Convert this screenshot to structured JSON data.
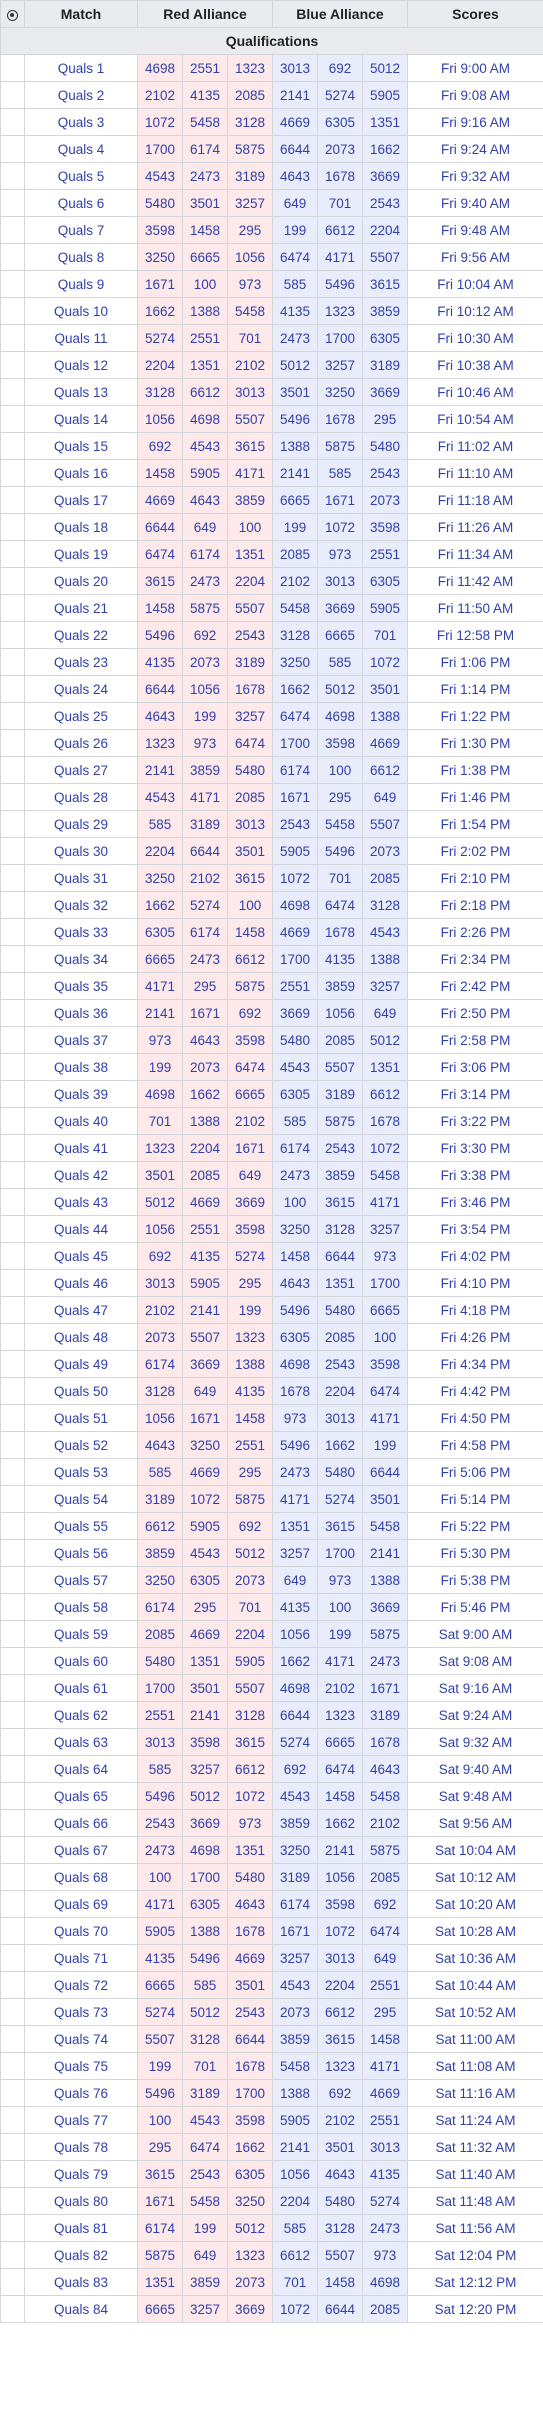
{
  "header": {
    "match": "Match",
    "red": "Red Alliance",
    "blue": "Blue Alliance",
    "scores": "Scores"
  },
  "section_label": "Qualifications",
  "matches": [
    [
      "Quals 1",
      "4698",
      "2551",
      "1323",
      "3013",
      "692",
      "5012",
      "Fri 9:00 AM"
    ],
    [
      "Quals 2",
      "2102",
      "4135",
      "2085",
      "2141",
      "5274",
      "5905",
      "Fri 9:08 AM"
    ],
    [
      "Quals 3",
      "1072",
      "5458",
      "3128",
      "4669",
      "6305",
      "1351",
      "Fri 9:16 AM"
    ],
    [
      "Quals 4",
      "1700",
      "6174",
      "5875",
      "6644",
      "2073",
      "1662",
      "Fri 9:24 AM"
    ],
    [
      "Quals 5",
      "4543",
      "2473",
      "3189",
      "4643",
      "1678",
      "3669",
      "Fri 9:32 AM"
    ],
    [
      "Quals 6",
      "5480",
      "3501",
      "3257",
      "649",
      "701",
      "2543",
      "Fri 9:40 AM"
    ],
    [
      "Quals 7",
      "3598",
      "1458",
      "295",
      "199",
      "6612",
      "2204",
      "Fri 9:48 AM"
    ],
    [
      "Quals 8",
      "3250",
      "6665",
      "1056",
      "6474",
      "4171",
      "5507",
      "Fri 9:56 AM"
    ],
    [
      "Quals 9",
      "1671",
      "100",
      "973",
      "585",
      "5496",
      "3615",
      "Fri 10:04 AM"
    ],
    [
      "Quals 10",
      "1662",
      "1388",
      "5458",
      "4135",
      "1323",
      "3859",
      "Fri 10:12 AM"
    ],
    [
      "Quals 11",
      "5274",
      "2551",
      "701",
      "2473",
      "1700",
      "6305",
      "Fri 10:30 AM"
    ],
    [
      "Quals 12",
      "2204",
      "1351",
      "2102",
      "5012",
      "3257",
      "3189",
      "Fri 10:38 AM"
    ],
    [
      "Quals 13",
      "3128",
      "6612",
      "3013",
      "3501",
      "3250",
      "3669",
      "Fri 10:46 AM"
    ],
    [
      "Quals 14",
      "1056",
      "4698",
      "5507",
      "5496",
      "1678",
      "295",
      "Fri 10:54 AM"
    ],
    [
      "Quals 15",
      "692",
      "4543",
      "3615",
      "1388",
      "5875",
      "5480",
      "Fri 11:02 AM"
    ],
    [
      "Quals 16",
      "1458",
      "5905",
      "4171",
      "2141",
      "585",
      "2543",
      "Fri 11:10 AM"
    ],
    [
      "Quals 17",
      "4669",
      "4643",
      "3859",
      "6665",
      "1671",
      "2073",
      "Fri 11:18 AM"
    ],
    [
      "Quals 18",
      "6644",
      "649",
      "100",
      "199",
      "1072",
      "3598",
      "Fri 11:26 AM"
    ],
    [
      "Quals 19",
      "6474",
      "6174",
      "1351",
      "2085",
      "973",
      "2551",
      "Fri 11:34 AM"
    ],
    [
      "Quals 20",
      "3615",
      "2473",
      "2204",
      "2102",
      "3013",
      "6305",
      "Fri 11:42 AM"
    ],
    [
      "Quals 21",
      "1458",
      "5875",
      "5507",
      "5458",
      "3669",
      "5905",
      "Fri 11:50 AM"
    ],
    [
      "Quals 22",
      "5496",
      "692",
      "2543",
      "3128",
      "6665",
      "701",
      "Fri 12:58 PM"
    ],
    [
      "Quals 23",
      "4135",
      "2073",
      "3189",
      "3250",
      "585",
      "1072",
      "Fri 1:06 PM"
    ],
    [
      "Quals 24",
      "6644",
      "1056",
      "1678",
      "1662",
      "5012",
      "3501",
      "Fri 1:14 PM"
    ],
    [
      "Quals 25",
      "4643",
      "199",
      "3257",
      "6474",
      "4698",
      "1388",
      "Fri 1:22 PM"
    ],
    [
      "Quals 26",
      "1323",
      "973",
      "6474",
      "1700",
      "3598",
      "4669",
      "Fri 1:30 PM"
    ],
    [
      "Quals 27",
      "2141",
      "3859",
      "5480",
      "6174",
      "100",
      "6612",
      "Fri 1:38 PM"
    ],
    [
      "Quals 28",
      "4543",
      "4171",
      "2085",
      "1671",
      "295",
      "649",
      "Fri 1:46 PM"
    ],
    [
      "Quals 29",
      "585",
      "3189",
      "3013",
      "2543",
      "5458",
      "5507",
      "Fri 1:54 PM"
    ],
    [
      "Quals 30",
      "2204",
      "6644",
      "3501",
      "5905",
      "5496",
      "2073",
      "Fri 2:02 PM"
    ],
    [
      "Quals 31",
      "3250",
      "2102",
      "3615",
      "1072",
      "701",
      "2085",
      "Fri 2:10 PM"
    ],
    [
      "Quals 32",
      "1662",
      "5274",
      "100",
      "4698",
      "6474",
      "3128",
      "Fri 2:18 PM"
    ],
    [
      "Quals 33",
      "6305",
      "6174",
      "1458",
      "4669",
      "1678",
      "4543",
      "Fri 2:26 PM"
    ],
    [
      "Quals 34",
      "6665",
      "2473",
      "6612",
      "1700",
      "4135",
      "1388",
      "Fri 2:34 PM"
    ],
    [
      "Quals 35",
      "4171",
      "295",
      "5875",
      "2551",
      "3859",
      "3257",
      "Fri 2:42 PM"
    ],
    [
      "Quals 36",
      "2141",
      "1671",
      "692",
      "3669",
      "1056",
      "649",
      "Fri 2:50 PM"
    ],
    [
      "Quals 37",
      "973",
      "4643",
      "3598",
      "5480",
      "2085",
      "5012",
      "Fri 2:58 PM"
    ],
    [
      "Quals 38",
      "199",
      "2073",
      "6474",
      "4543",
      "5507",
      "1351",
      "Fri 3:06 PM"
    ],
    [
      "Quals 39",
      "4698",
      "1662",
      "6665",
      "6305",
      "3189",
      "6612",
      "Fri 3:14 PM"
    ],
    [
      "Quals 40",
      "701",
      "1388",
      "2102",
      "585",
      "5875",
      "1678",
      "Fri 3:22 PM"
    ],
    [
      "Quals 41",
      "1323",
      "2204",
      "1671",
      "6174",
      "2543",
      "1072",
      "Fri 3:30 PM"
    ],
    [
      "Quals 42",
      "3501",
      "2085",
      "649",
      "2473",
      "3859",
      "5458",
      "Fri 3:38 PM"
    ],
    [
      "Quals 43",
      "5012",
      "4669",
      "3669",
      "100",
      "3615",
      "4171",
      "Fri 3:46 PM"
    ],
    [
      "Quals 44",
      "1056",
      "2551",
      "3598",
      "3250",
      "3128",
      "3257",
      "Fri 3:54 PM"
    ],
    [
      "Quals 45",
      "692",
      "4135",
      "5274",
      "1458",
      "6644",
      "973",
      "Fri 4:02 PM"
    ],
    [
      "Quals 46",
      "3013",
      "5905",
      "295",
      "4643",
      "1351",
      "1700",
      "Fri 4:10 PM"
    ],
    [
      "Quals 47",
      "2102",
      "2141",
      "199",
      "5496",
      "5480",
      "6665",
      "Fri 4:18 PM"
    ],
    [
      "Quals 48",
      "2073",
      "5507",
      "1323",
      "6305",
      "2085",
      "100",
      "Fri 4:26 PM"
    ],
    [
      "Quals 49",
      "6174",
      "3669",
      "1388",
      "4698",
      "2543",
      "3598",
      "Fri 4:34 PM"
    ],
    [
      "Quals 50",
      "3128",
      "649",
      "4135",
      "1678",
      "2204",
      "6474",
      "Fri 4:42 PM"
    ],
    [
      "Quals 51",
      "1056",
      "1671",
      "1458",
      "973",
      "3013",
      "4171",
      "Fri 4:50 PM"
    ],
    [
      "Quals 52",
      "4643",
      "3250",
      "2551",
      "5496",
      "1662",
      "199",
      "Fri 4:58 PM"
    ],
    [
      "Quals 53",
      "585",
      "4669",
      "295",
      "2473",
      "5480",
      "6644",
      "Fri 5:06 PM"
    ],
    [
      "Quals 54",
      "3189",
      "1072",
      "5875",
      "4171",
      "5274",
      "3501",
      "Fri 5:14 PM"
    ],
    [
      "Quals 55",
      "6612",
      "5905",
      "692",
      "1351",
      "3615",
      "5458",
      "Fri 5:22 PM"
    ],
    [
      "Quals 56",
      "3859",
      "4543",
      "5012",
      "3257",
      "1700",
      "2141",
      "Fri 5:30 PM"
    ],
    [
      "Quals 57",
      "3250",
      "6305",
      "2073",
      "649",
      "973",
      "1388",
      "Fri 5:38 PM"
    ],
    [
      "Quals 58",
      "6174",
      "295",
      "701",
      "4135",
      "100",
      "3669",
      "Fri 5:46 PM"
    ],
    [
      "Quals 59",
      "2085",
      "4669",
      "2204",
      "1056",
      "199",
      "5875",
      "Sat 9:00 AM"
    ],
    [
      "Quals 60",
      "5480",
      "1351",
      "5905",
      "1662",
      "4171",
      "2473",
      "Sat 9:08 AM"
    ],
    [
      "Quals 61",
      "1700",
      "3501",
      "5507",
      "4698",
      "2102",
      "1671",
      "Sat 9:16 AM"
    ],
    [
      "Quals 62",
      "2551",
      "2141",
      "3128",
      "6644",
      "1323",
      "3189",
      "Sat 9:24 AM"
    ],
    [
      "Quals 63",
      "3013",
      "3598",
      "3615",
      "5274",
      "6665",
      "1678",
      "Sat 9:32 AM"
    ],
    [
      "Quals 64",
      "585",
      "3257",
      "6612",
      "692",
      "6474",
      "4643",
      "Sat 9:40 AM"
    ],
    [
      "Quals 65",
      "5496",
      "5012",
      "1072",
      "4543",
      "1458",
      "5458",
      "Sat 9:48 AM"
    ],
    [
      "Quals 66",
      "2543",
      "3669",
      "973",
      "3859",
      "1662",
      "2102",
      "Sat 9:56 AM"
    ],
    [
      "Quals 67",
      "2473",
      "4698",
      "1351",
      "3250",
      "2141",
      "5875",
      "Sat 10:04 AM"
    ],
    [
      "Quals 68",
      "100",
      "1700",
      "5480",
      "3189",
      "1056",
      "2085",
      "Sat 10:12 AM"
    ],
    [
      "Quals 69",
      "4171",
      "6305",
      "4643",
      "6174",
      "3598",
      "692",
      "Sat 10:20 AM"
    ],
    [
      "Quals 70",
      "5905",
      "1388",
      "1678",
      "1671",
      "1072",
      "6474",
      "Sat 10:28 AM"
    ],
    [
      "Quals 71",
      "4135",
      "5496",
      "4669",
      "3257",
      "3013",
      "649",
      "Sat 10:36 AM"
    ],
    [
      "Quals 72",
      "6665",
      "585",
      "3501",
      "4543",
      "2204",
      "2551",
      "Sat 10:44 AM"
    ],
    [
      "Quals 73",
      "5274",
      "5012",
      "2543",
      "2073",
      "6612",
      "295",
      "Sat 10:52 AM"
    ],
    [
      "Quals 74",
      "5507",
      "3128",
      "6644",
      "3859",
      "3615",
      "1458",
      "Sat 11:00 AM"
    ],
    [
      "Quals 75",
      "199",
      "701",
      "1678",
      "5458",
      "1323",
      "4171",
      "Sat 11:08 AM"
    ],
    [
      "Quals 76",
      "5496",
      "3189",
      "1700",
      "1388",
      "692",
      "4669",
      "Sat 11:16 AM"
    ],
    [
      "Quals 77",
      "100",
      "4543",
      "3598",
      "5905",
      "2102",
      "2551",
      "Sat 11:24 AM"
    ],
    [
      "Quals 78",
      "295",
      "6474",
      "1662",
      "2141",
      "3501",
      "3013",
      "Sat 11:32 AM"
    ],
    [
      "Quals 79",
      "3615",
      "2543",
      "6305",
      "1056",
      "4643",
      "4135",
      "Sat 11:40 AM"
    ],
    [
      "Quals 80",
      "1671",
      "5458",
      "3250",
      "2204",
      "5480",
      "5274",
      "Sat 11:48 AM"
    ],
    [
      "Quals 81",
      "6174",
      "199",
      "5012",
      "585",
      "3128",
      "2473",
      "Sat 11:56 AM"
    ],
    [
      "Quals 82",
      "5875",
      "649",
      "1323",
      "6612",
      "5507",
      "973",
      "Sat 12:04 PM"
    ],
    [
      "Quals 83",
      "1351",
      "3859",
      "2073",
      "701",
      "1458",
      "4698",
      "Sat 12:12 PM"
    ],
    [
      "Quals 84",
      "6665",
      "3257",
      "3669",
      "1072",
      "6644",
      "2085",
      "Sat 12:20 PM"
    ]
  ]
}
